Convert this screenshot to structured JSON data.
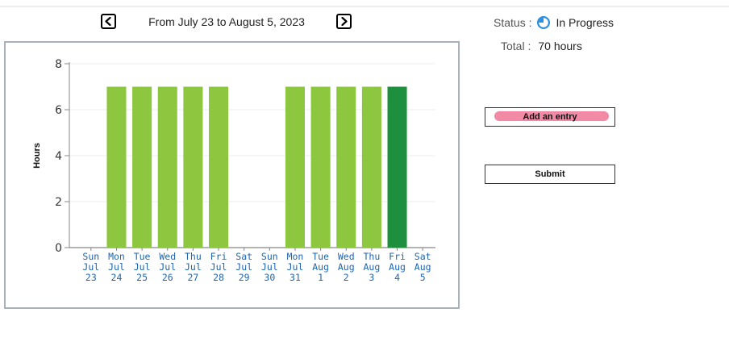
{
  "header": {
    "prev_icon": "chevron-left-icon",
    "next_icon": "chevron-right-icon",
    "date_range": "From July 23 to August 5, 2023"
  },
  "status": {
    "label": "Status :",
    "icon": "in-progress-icon",
    "value": "In Progress"
  },
  "total": {
    "label": "Total :",
    "value": "70 hours"
  },
  "actions": {
    "add_entry": "Add an entry",
    "submit": "Submit"
  },
  "colors": {
    "bar": "#8dc63f",
    "bar_selected": "#1e8f3e",
    "tick_label": "#1e64b4",
    "add_entry_pill": "#f28aa6",
    "status_icon": "#2a8fe0"
  },
  "chart_data": {
    "type": "bar",
    "ylabel": "Hours",
    "xlabel": "",
    "ylim": [
      0,
      8
    ],
    "yticks": [
      "0",
      "2",
      "4",
      "6",
      "8"
    ],
    "grid": true,
    "selected_index": 12,
    "categories": [
      {
        "day": "Sun",
        "month": "Jul",
        "date": "23"
      },
      {
        "day": "Mon",
        "month": "Jul",
        "date": "24"
      },
      {
        "day": "Tue",
        "month": "Jul",
        "date": "25"
      },
      {
        "day": "Wed",
        "month": "Jul",
        "date": "26"
      },
      {
        "day": "Thu",
        "month": "Jul",
        "date": "27"
      },
      {
        "day": "Fri",
        "month": "Jul",
        "date": "28"
      },
      {
        "day": "Sat",
        "month": "Jul",
        "date": "29"
      },
      {
        "day": "Sun",
        "month": "Jul",
        "date": "30"
      },
      {
        "day": "Mon",
        "month": "Jul",
        "date": "31"
      },
      {
        "day": "Tue",
        "month": "Aug",
        "date": "1"
      },
      {
        "day": "Wed",
        "month": "Aug",
        "date": "2"
      },
      {
        "day": "Thu",
        "month": "Aug",
        "date": "3"
      },
      {
        "day": "Fri",
        "month": "Aug",
        "date": "4"
      },
      {
        "day": "Sat",
        "month": "Aug",
        "date": "5"
      }
    ],
    "values": [
      0,
      7,
      7,
      7,
      7,
      7,
      0,
      0,
      7,
      7,
      7,
      7,
      7,
      0
    ]
  }
}
